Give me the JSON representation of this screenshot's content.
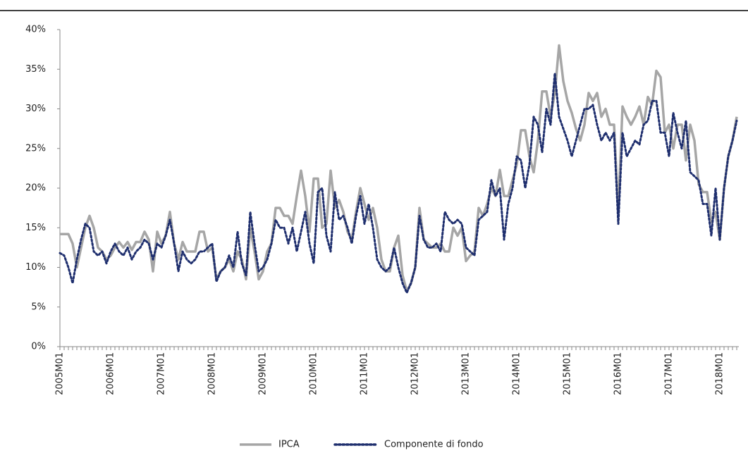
{
  "chart_data": {
    "type": "line",
    "categories": [
      "2005M01",
      null,
      null,
      null,
      null,
      null,
      null,
      null,
      null,
      null,
      null,
      null,
      "2006M01",
      null,
      null,
      null,
      null,
      null,
      null,
      null,
      null,
      null,
      null,
      null,
      "2007M01",
      null,
      null,
      null,
      null,
      null,
      null,
      null,
      null,
      null,
      null,
      null,
      "2008M01",
      null,
      null,
      null,
      null,
      null,
      null,
      null,
      null,
      null,
      null,
      null,
      "2009M01",
      null,
      null,
      null,
      null,
      null,
      null,
      null,
      null,
      null,
      null,
      null,
      "2010M01",
      null,
      null,
      null,
      null,
      null,
      null,
      null,
      null,
      null,
      null,
      null,
      "2011M01",
      null,
      null,
      null,
      null,
      null,
      null,
      null,
      null,
      null,
      null,
      null,
      "2012M01",
      null,
      null,
      null,
      null,
      null,
      null,
      null,
      null,
      null,
      null,
      null,
      "2013M01",
      null,
      null,
      null,
      null,
      null,
      null,
      null,
      null,
      null,
      null,
      null,
      "2014M01",
      null,
      null,
      null,
      null,
      null,
      null,
      null,
      null,
      null,
      null,
      null,
      "2015M01",
      null,
      null,
      null,
      null,
      null,
      null,
      null,
      null,
      null,
      null,
      null,
      "2016M01",
      null,
      null,
      null,
      null,
      null,
      null,
      null,
      null,
      null,
      null,
      null,
      "2017M01",
      null,
      null,
      null,
      null,
      null,
      null,
      null,
      null,
      null,
      null,
      null,
      "2018M01",
      null,
      null,
      null,
      null
    ],
    "series": [
      {
        "name": "IPCA",
        "color": "#a6a6a6",
        "linestyle": "solid",
        "values": [
          14.2,
          14.2,
          14.2,
          13,
          10,
          12.5,
          15,
          16.5,
          15,
          12.5,
          12,
          11,
          11.5,
          12.5,
          13.2,
          12.5,
          13.2,
          12.2,
          13.2,
          13.2,
          14.5,
          13.5,
          9.5,
          14.5,
          13,
          14,
          17,
          13,
          11,
          13.2,
          12,
          12,
          12,
          14.5,
          14.5,
          12,
          12.5,
          8.5,
          9.5,
          10,
          11,
          9.5,
          12,
          11,
          8.5,
          15,
          12,
          8.5,
          9.5,
          12,
          13,
          17.5,
          17.5,
          16.5,
          16.5,
          15.5,
          19,
          22.2,
          19,
          14.5,
          21.2,
          21.2,
          15,
          15.5,
          22.2,
          17.5,
          18.5,
          17,
          14.5,
          13.5,
          17,
          20,
          18,
          16,
          17.5,
          15,
          11,
          9.5,
          9.5,
          12.5,
          14,
          9,
          7,
          8,
          10,
          17.5,
          13.5,
          13,
          12.5,
          12.5,
          13,
          12,
          12,
          15,
          14,
          15,
          10.8,
          11.5,
          12,
          17.5,
          16.5,
          18,
          20,
          19,
          22.3,
          19,
          19,
          21,
          23,
          27.3,
          27.3,
          24,
          22,
          26,
          32.2,
          32.2,
          29,
          32,
          38,
          33.5,
          31,
          29.5,
          27.5,
          26,
          28,
          32,
          31,
          32,
          29,
          30,
          28,
          28,
          17,
          30.3,
          29,
          28,
          29,
          30.3,
          28,
          31.5,
          30.5,
          34.8,
          34,
          27,
          28,
          25,
          28,
          28,
          23.5,
          28,
          26,
          20.5,
          19.5,
          19.5,
          15.7,
          17,
          13.5,
          20,
          24,
          26,
          29
        ]
      },
      {
        "name": "Componente di fondo",
        "color": "#1f2f6e",
        "linestyle": "dotted",
        "values": [
          11.8,
          11.5,
          10,
          8,
          11,
          13.5,
          15.5,
          15,
          12,
          11.5,
          12,
          10.5,
          12,
          13,
          12,
          11.5,
          12.5,
          11,
          12,
          12.5,
          13.5,
          13,
          11,
          13,
          12.5,
          14,
          16,
          13,
          9.5,
          12,
          11,
          10.5,
          11,
          12,
          12,
          12.5,
          13,
          8.2,
          9.5,
          10,
          11.5,
          10,
          14.5,
          10.5,
          9,
          17,
          13,
          9.5,
          10,
          11,
          13,
          16,
          15,
          15,
          13,
          15,
          12,
          14.5,
          17,
          13,
          10.5,
          19.5,
          20,
          14,
          12,
          19.5,
          16,
          16.5,
          15,
          13,
          16.5,
          19,
          15.5,
          18,
          15,
          11,
          10,
          9.5,
          10,
          12.5,
          10,
          8,
          6.8,
          8,
          10,
          16.5,
          13.5,
          12.5,
          12.5,
          13,
          12,
          17,
          16,
          15.5,
          16,
          15.5,
          12.5,
          12,
          11.5,
          16,
          16.5,
          17,
          21,
          19,
          20,
          13.5,
          18,
          20,
          24,
          23.5,
          20,
          23,
          29,
          28,
          24.5,
          30,
          28,
          34.5,
          29,
          27.5,
          26,
          24,
          26,
          28,
          30,
          30,
          30.5,
          28,
          26,
          27,
          26,
          27,
          15.5,
          27,
          24,
          25,
          26,
          25.5,
          28,
          28.5,
          31,
          31,
          27,
          27,
          24,
          29.5,
          27,
          25,
          28.5,
          22,
          21.5,
          21,
          18,
          18,
          14,
          20,
          13.5,
          20,
          24,
          26,
          28.5
        ]
      }
    ],
    "ylim": [
      0,
      40
    ],
    "yticks": [
      {
        "value": 0,
        "label": "0%"
      },
      {
        "value": 5,
        "label": "5%"
      },
      {
        "value": 10,
        "label": "10%"
      },
      {
        "value": 15,
        "label": "15%"
      },
      {
        "value": 20,
        "label": "20%"
      },
      {
        "value": 25,
        "label": "25%"
      },
      {
        "value": 30,
        "label": "30%"
      },
      {
        "value": 35,
        "label": "35%"
      },
      {
        "value": 40,
        "label": "40%"
      }
    ],
    "grid": false,
    "legend": "bottom"
  }
}
